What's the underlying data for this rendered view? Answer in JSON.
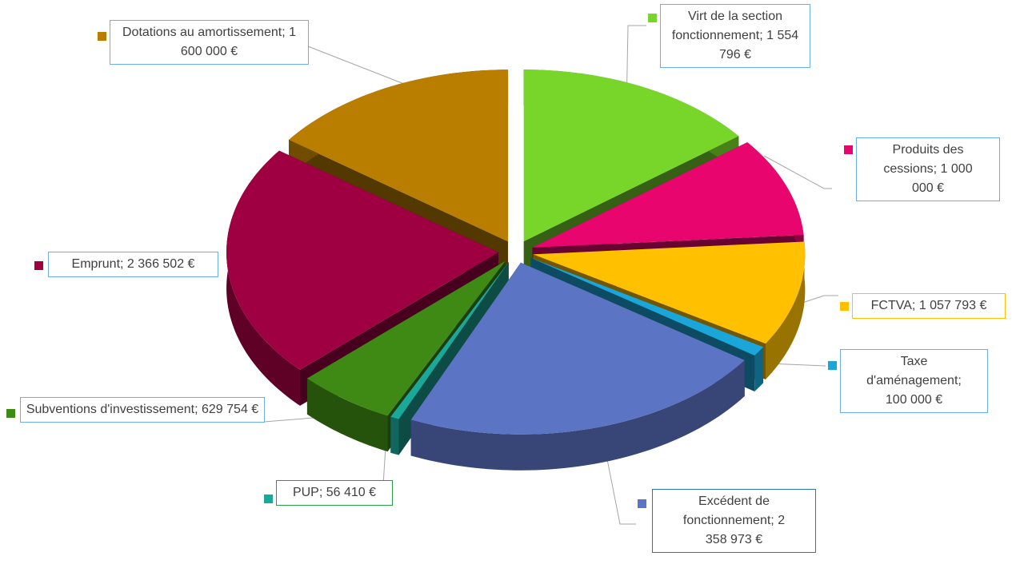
{
  "chart_data": {
    "type": "pie",
    "categories": [
      "Virt de la section fonctionnement",
      "Produits des cessions",
      "FCTVA",
      "Taxe d'aménagement",
      "Excédent de fonctionnement",
      "PUP",
      "Subventions d'investissement",
      "Emprunt",
      "Dotations au amortissement"
    ],
    "values": [
      1554796,
      1000000,
      1057793,
      100000,
      2358973,
      56410,
      629754,
      2366502,
      1600000
    ],
    "value_labels": [
      "1 554 796 €",
      "1 000 000 €",
      "1 057 793 €",
      "100 000 €",
      "2 358 973 €",
      "56 410 €",
      "629 754 €",
      "2 366 502 €",
      "1 600 000 €"
    ],
    "colors": [
      "#78d62a",
      "#e8066e",
      "#ffc000",
      "#1aa6d9",
      "#5b74c4",
      "#1aa89a",
      "#3f8a14",
      "#9e0041",
      "#b97e00"
    ]
  }
}
